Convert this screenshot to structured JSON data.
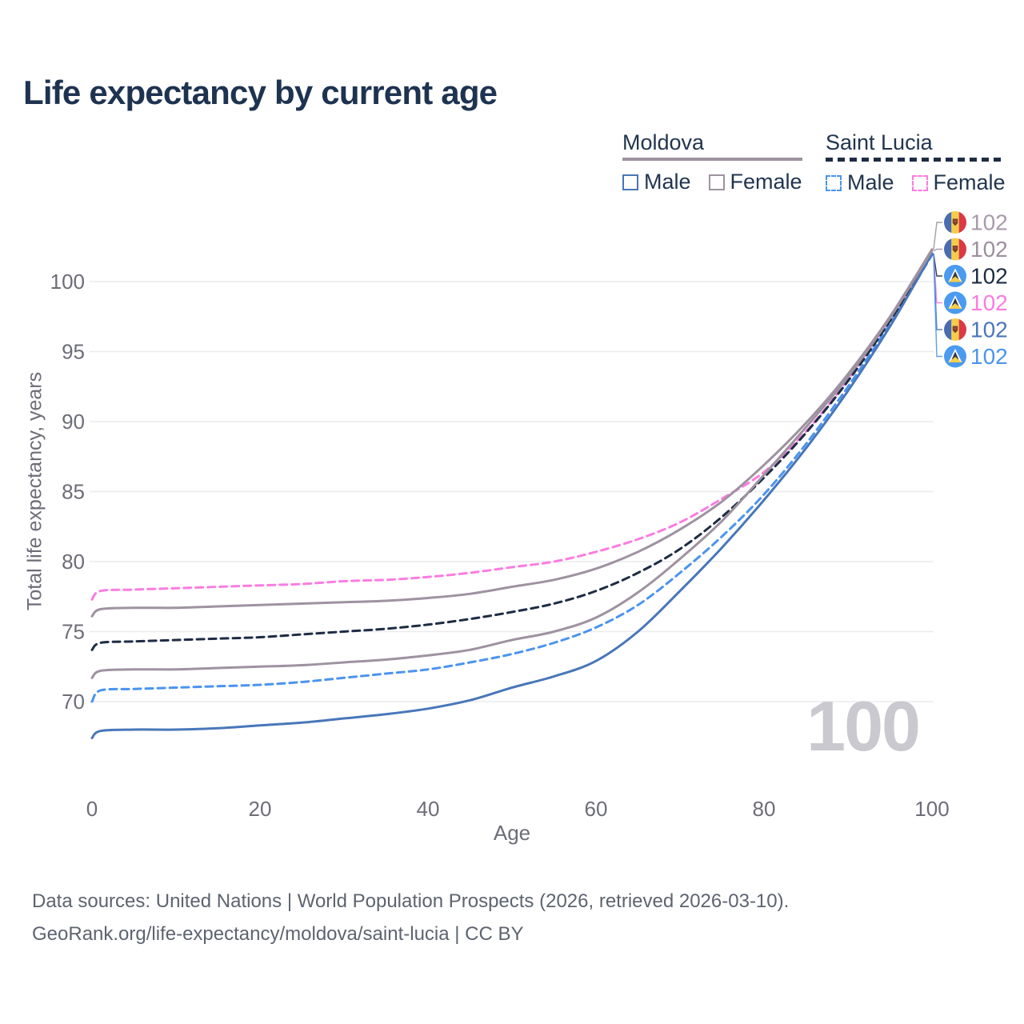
{
  "title": "Life expectancy by current age",
  "watermark": "100",
  "legend": {
    "groups": [
      {
        "country": "Moldova",
        "line_style": "solid",
        "color": "#9e92a0",
        "items": [
          {
            "label": "Male",
            "color": "#4877b9",
            "dashed": false
          },
          {
            "label": "Female",
            "color": "#9e92a0",
            "dashed": false
          }
        ]
      },
      {
        "country": "Saint Lucia",
        "line_style": "dashed",
        "color": "#1e2c44",
        "items": [
          {
            "label": "Male",
            "color": "#4b94ef",
            "dashed": true
          },
          {
            "label": "Female",
            "color": "#fb7ce1",
            "dashed": true
          }
        ]
      }
    ]
  },
  "footer": {
    "line1": "Data sources: United Nations | World Population Prospects (2026, retrieved 2026-03-10).",
    "line2": "GeoRank.org/life-expectancy/moldova/saint-lucia | CC BY"
  },
  "chart_data": {
    "type": "line",
    "title": "Life expectancy by current age",
    "xlabel": "Age",
    "ylabel": "Total life expectancy, years",
    "xlim": [
      0,
      100
    ],
    "ylim": [
      66,
      103
    ],
    "x_ticks": [
      0,
      20,
      40,
      60,
      80,
      100
    ],
    "y_ticks": [
      70,
      75,
      80,
      85,
      90,
      95,
      100
    ],
    "grid": "horizontal-only",
    "legend_position": "top-right",
    "age_counter": "100",
    "x": [
      0,
      1,
      5,
      10,
      15,
      20,
      25,
      30,
      35,
      40,
      45,
      50,
      55,
      60,
      65,
      70,
      75,
      80,
      85,
      90,
      95,
      100
    ],
    "series": [
      {
        "name": "Moldova Female",
        "country": "Moldova",
        "sex": "female",
        "flag": "md",
        "color": "#9e92a0",
        "dashed": false,
        "end_label": "102",
        "end_label_color": "#a89bab",
        "end_label_row": 0,
        "values": [
          76.1,
          76.6,
          76.7,
          76.7,
          76.8,
          76.9,
          77.0,
          77.1,
          77.2,
          77.4,
          77.7,
          78.2,
          78.7,
          79.5,
          80.7,
          82.3,
          84.3,
          86.9,
          89.9,
          93.4,
          97.5,
          102.3
        ]
      },
      {
        "name": "Moldova Total",
        "country": "Moldova",
        "sex": "both",
        "flag": "md",
        "color": "#9e92a0",
        "dashed": false,
        "end_label": "102",
        "end_label_color": "#9c8f9e",
        "end_label_row": 1,
        "values": [
          71.7,
          72.2,
          72.3,
          72.3,
          72.4,
          72.5,
          72.6,
          72.8,
          73.0,
          73.3,
          73.7,
          74.4,
          75.0,
          76.0,
          77.8,
          80.2,
          82.9,
          86.2,
          89.6,
          93.2,
          97.4,
          102.2
        ]
      },
      {
        "name": "Saint Lucia Total",
        "country": "Saint Lucia",
        "sex": "both",
        "flag": "lc",
        "color": "#1e2c44",
        "dashed": true,
        "end_label": "102",
        "end_label_color": "#1e2c44",
        "end_label_row": 2,
        "values": [
          73.7,
          74.2,
          74.3,
          74.4,
          74.5,
          74.6,
          74.8,
          75.0,
          75.2,
          75.5,
          75.9,
          76.4,
          77.0,
          77.9,
          79.2,
          80.9,
          83.2,
          86.0,
          89.2,
          92.9,
          97.2,
          102.0
        ]
      },
      {
        "name": "Saint Lucia Female",
        "country": "Saint Lucia",
        "sex": "female",
        "flag": "lc",
        "color": "#fb7ce1",
        "dashed": true,
        "end_label": "102",
        "end_label_color": "#fb7ce1",
        "end_label_row": 3,
        "values": [
          77.3,
          77.9,
          78.0,
          78.1,
          78.2,
          78.3,
          78.4,
          78.6,
          78.7,
          78.9,
          79.2,
          79.6,
          80.0,
          80.7,
          81.6,
          82.8,
          84.5,
          86.4,
          89.3,
          93.0,
          97.3,
          102.0
        ]
      },
      {
        "name": "Moldova Male",
        "country": "Moldova",
        "sex": "male",
        "flag": "md",
        "color": "#4877b9",
        "dashed": false,
        "end_label": "102",
        "end_label_color": "#4b76ba",
        "end_label_row": 4,
        "values": [
          67.4,
          67.9,
          68.0,
          68.0,
          68.1,
          68.3,
          68.5,
          68.8,
          69.1,
          69.5,
          70.1,
          71.0,
          71.8,
          72.9,
          75.0,
          77.9,
          81.0,
          84.4,
          88.1,
          92.2,
          96.8,
          102.0
        ]
      },
      {
        "name": "Saint Lucia Male",
        "country": "Saint Lucia",
        "sex": "male",
        "flag": "lc",
        "color": "#4b94ef",
        "dashed": true,
        "end_label": "102",
        "end_label_color": "#4b94ef",
        "end_label_row": 5,
        "values": [
          70.0,
          70.8,
          70.9,
          71.0,
          71.1,
          71.2,
          71.4,
          71.7,
          72.0,
          72.3,
          72.8,
          73.4,
          74.2,
          75.3,
          76.9,
          79.2,
          81.8,
          84.8,
          88.4,
          92.5,
          97.0,
          101.9
        ]
      }
    ]
  },
  "colors": {
    "title": "#1d3350",
    "axis_text": "#6d6d78",
    "gridline": "#ebebef",
    "watermark": "#c9c9cf",
    "footer_text": "#5d6470",
    "moldova_flag": [
      "#4a6cb2",
      "#f6cd4a",
      "#da3945"
    ],
    "saint_lucia_flag": [
      "#4a9af0",
      "#ffffff",
      "#33333d",
      "#f6cd4a"
    ]
  }
}
